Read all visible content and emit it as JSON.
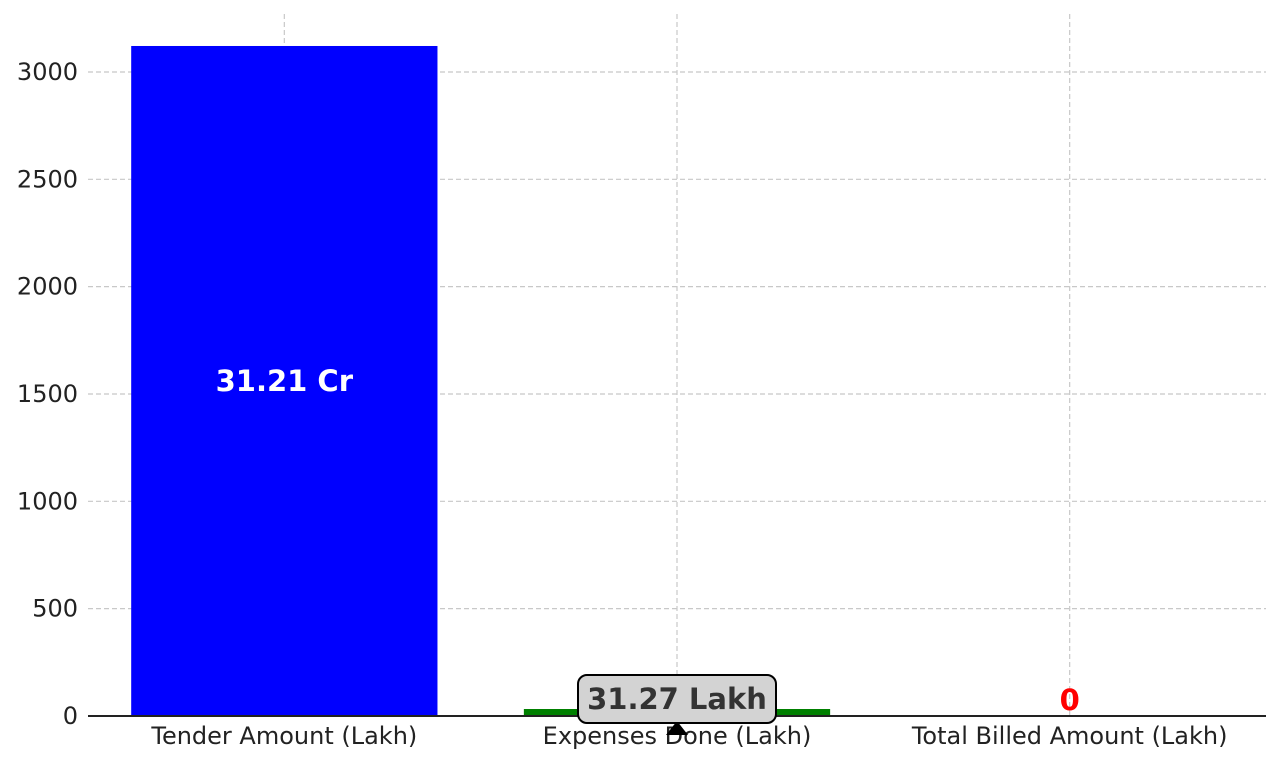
{
  "chart_data": {
    "type": "bar",
    "categories": [
      "Tender Amount (Lakh)",
      "Expenses Done (Lakh)",
      "Total Billed Amount (Lakh)"
    ],
    "values": [
      3121,
      31.27,
      0
    ],
    "ylim": [
      0,
      3270
    ],
    "yticks": [
      0,
      500,
      1000,
      1500,
      2000,
      2500,
      3000
    ],
    "grid": true,
    "bar_colors": [
      "#0000ff",
      "#008000",
      "#ff0000"
    ],
    "bar_labels": [
      {
        "text": "31.21 Cr",
        "color": "#ffffff",
        "placement": "center"
      },
      {
        "text": "31.27 Lakh",
        "color": "#333333",
        "placement": "callout"
      },
      {
        "text": "0",
        "color": "#ff0000",
        "placement": "top"
      }
    ],
    "callout_fill": "#d3d3d3",
    "title": "",
    "xlabel": "",
    "ylabel": ""
  }
}
